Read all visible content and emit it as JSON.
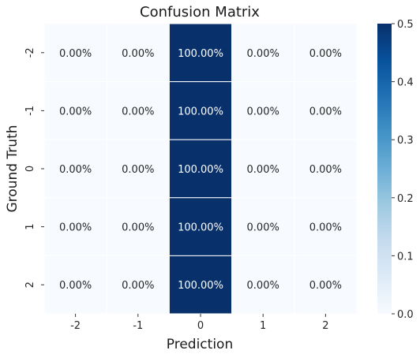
{
  "chart_data": {
    "type": "heatmap",
    "title": "Confusion Matrix",
    "xlabel": "Prediction",
    "ylabel": "Ground Truth",
    "x_categories": [
      "-2",
      "-1",
      "0",
      "1",
      "2"
    ],
    "y_categories": [
      "-2",
      "-1",
      "0",
      "1",
      "2"
    ],
    "values": [
      [
        0,
        0,
        1,
        0,
        0
      ],
      [
        0,
        0,
        1,
        0,
        0
      ],
      [
        0,
        0,
        1,
        0,
        0
      ],
      [
        0,
        0,
        1,
        0,
        0
      ],
      [
        0,
        0,
        1,
        0,
        0
      ]
    ],
    "cell_labels": [
      [
        "0.00%",
        "0.00%",
        "100.00%",
        "0.00%",
        "0.00%"
      ],
      [
        "0.00%",
        "0.00%",
        "100.00%",
        "0.00%",
        "0.00%"
      ],
      [
        "0.00%",
        "0.00%",
        "100.00%",
        "0.00%",
        "0.00%"
      ],
      [
        "0.00%",
        "0.00%",
        "100.00%",
        "0.00%",
        "0.00%"
      ],
      [
        "0.00%",
        "0.00%",
        "100.00%",
        "0.00%",
        "0.00%"
      ]
    ],
    "colorbar": {
      "range": [
        0.0,
        0.5
      ],
      "ticks": [
        "0.0",
        "0.1",
        "0.2",
        "0.3",
        "0.4",
        "0.5"
      ],
      "colormap": "Blues",
      "low_color": "#f7fbff",
      "high_color": "#08306b"
    }
  }
}
